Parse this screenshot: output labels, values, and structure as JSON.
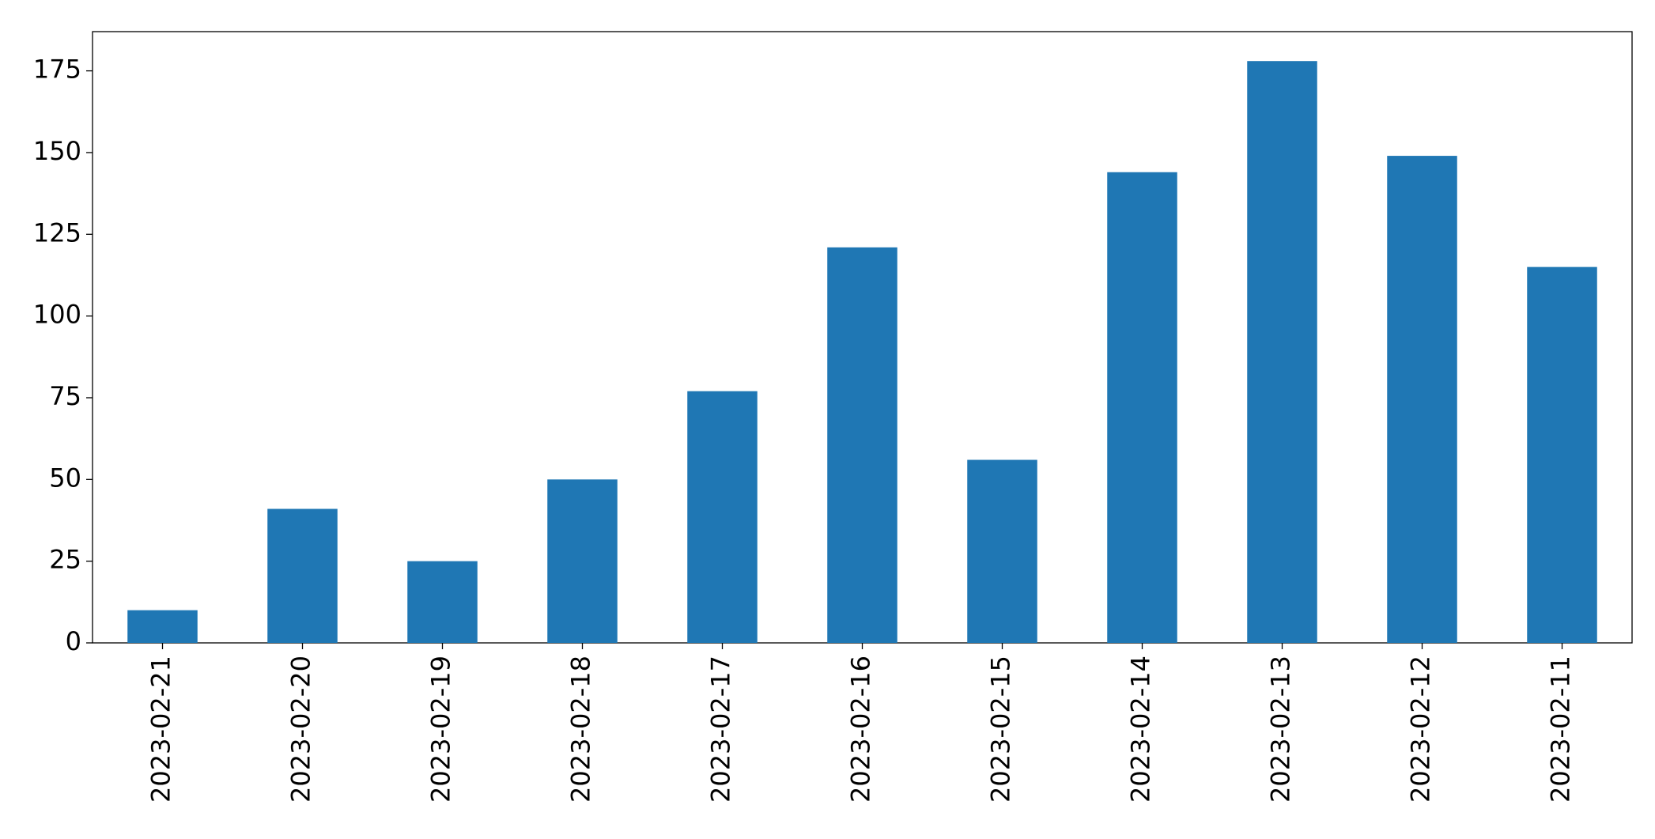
{
  "chart_data": {
    "type": "bar",
    "categories": [
      "2023-02-21",
      "2023-02-20",
      "2023-02-19",
      "2023-02-18",
      "2023-02-17",
      "2023-02-16",
      "2023-02-15",
      "2023-02-14",
      "2023-02-13",
      "2023-02-12",
      "2023-02-11"
    ],
    "values": [
      10,
      41,
      25,
      50,
      77,
      121,
      56,
      144,
      178,
      149,
      115
    ],
    "color": "#1f77b4",
    "ylim": [
      0,
      187
    ],
    "yticks": [
      0,
      25,
      50,
      75,
      100,
      125,
      150,
      175
    ],
    "grid": false
  }
}
